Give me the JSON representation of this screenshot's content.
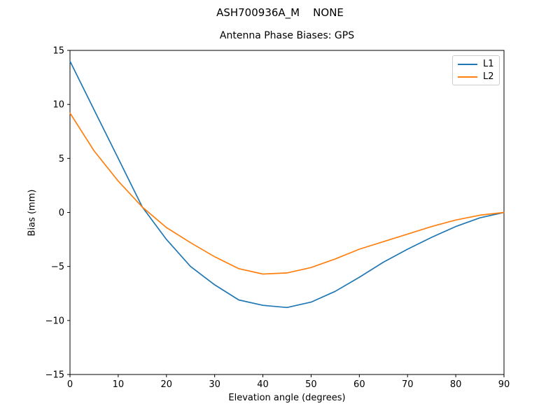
{
  "figure": {
    "suptitle": "ASH700936A_M    NONE",
    "background": "#ffffff",
    "text_color": "#000000"
  },
  "chart_data": {
    "type": "line",
    "title": "Antenna Phase Biases: GPS",
    "xlabel": "Elevation angle (degrees)",
    "ylabel": "Bias (mm)",
    "xlim": [
      0,
      90
    ],
    "ylim": [
      -15,
      15
    ],
    "xticks": [
      0,
      10,
      20,
      30,
      40,
      50,
      60,
      70,
      80,
      90
    ],
    "yticks": [
      -15,
      -10,
      -5,
      0,
      5,
      10,
      15
    ],
    "grid": false,
    "legend": {
      "position": "upper right",
      "entries": [
        "L1",
        "L2"
      ]
    },
    "x": [
      0,
      5,
      10,
      15,
      20,
      25,
      30,
      35,
      40,
      45,
      50,
      55,
      60,
      65,
      70,
      75,
      80,
      85,
      90
    ],
    "series": [
      {
        "name": "L1",
        "color": "#1f77b4",
        "values": [
          14.0,
          9.5,
          5.0,
          0.5,
          -2.5,
          -5.0,
          -6.7,
          -8.1,
          -8.6,
          -8.8,
          -8.3,
          -7.3,
          -6.0,
          -4.6,
          -3.4,
          -2.3,
          -1.3,
          -0.5,
          0.0
        ]
      },
      {
        "name": "L2",
        "color": "#ff7f0e",
        "values": [
          9.2,
          5.7,
          2.9,
          0.5,
          -1.4,
          -2.8,
          -4.1,
          -5.2,
          -5.7,
          -5.6,
          -5.1,
          -4.3,
          -3.4,
          -2.7,
          -2.0,
          -1.3,
          -0.7,
          -0.25,
          0.0
        ]
      }
    ]
  }
}
